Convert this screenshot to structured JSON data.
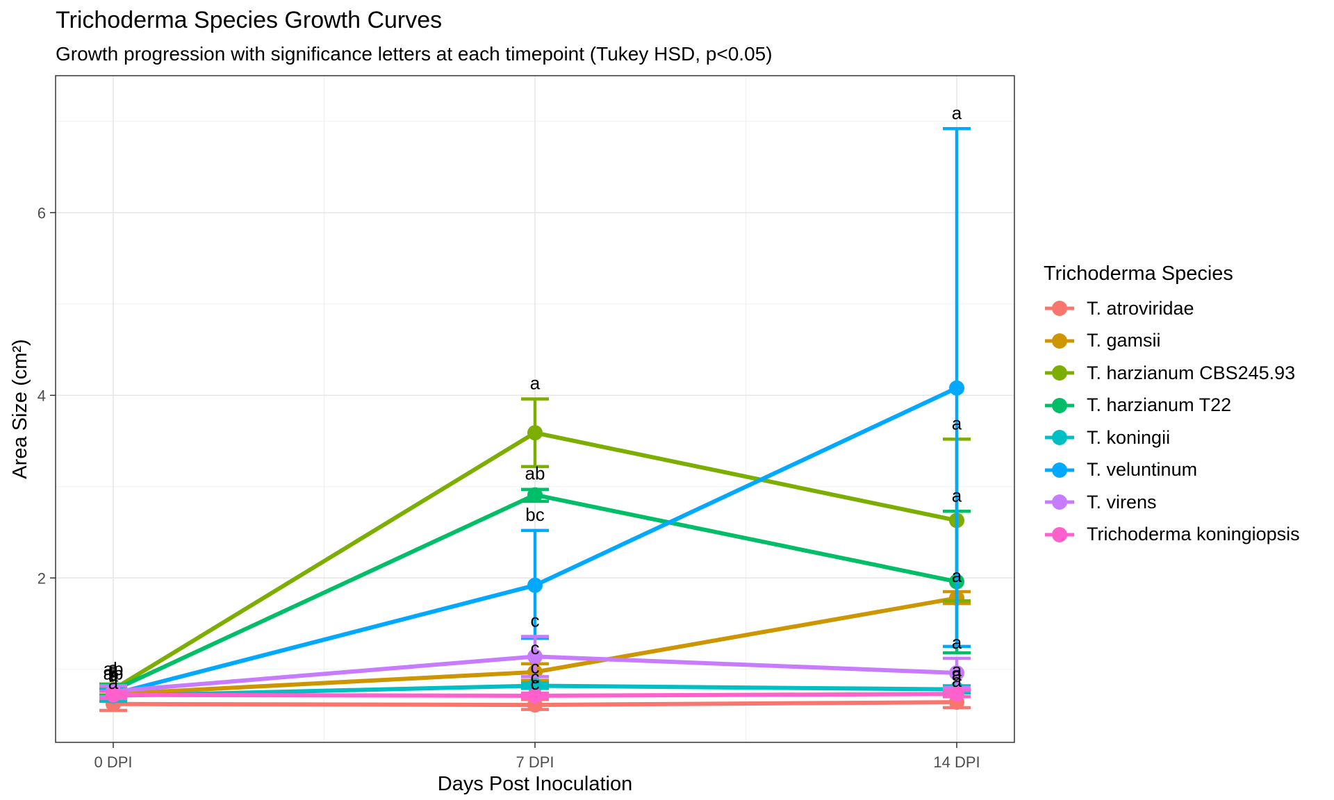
{
  "chart_data": {
    "type": "line",
    "title": "Trichoderma Species Growth Curves",
    "subtitle": "Growth progression with significance letters at each timepoint (Tukey HSD, p<0.05)",
    "xlabel": "Days Post Inoculation",
    "ylabel": "Area Size (cm²)",
    "categories": [
      "0 DPI",
      "7 DPI",
      "14 DPI"
    ],
    "ylim": [
      0.2,
      7.5
    ],
    "yticks": [
      2,
      4,
      6
    ],
    "grid": true,
    "legend_title": "Trichoderma Species",
    "legend_position": "right",
    "series": [
      {
        "name": "T. atroviridae",
        "color": "#F8766D",
        "values": [
          0.62,
          0.61,
          0.64
        ],
        "err_lo": [
          0.55,
          0.56,
          0.58
        ],
        "err_hi": [
          0.68,
          0.67,
          0.7
        ],
        "letters": [
          "a",
          "c",
          "a"
        ]
      },
      {
        "name": "T. gamsii",
        "color": "#CD9600",
        "values": [
          0.73,
          0.97,
          1.78
        ],
        "err_lo": [
          0.65,
          0.88,
          1.72
        ],
        "err_hi": [
          0.8,
          1.06,
          1.85
        ],
        "letters": [
          "a",
          "c",
          "a"
        ]
      },
      {
        "name": "T. harzianum CBS245.93",
        "color": "#7CAE00",
        "values": [
          0.78,
          3.59,
          2.63
        ],
        "err_lo": [
          0.72,
          3.22,
          1.75
        ],
        "err_hi": [
          0.84,
          3.96,
          3.52
        ],
        "letters": [
          "a",
          "a",
          "a"
        ]
      },
      {
        "name": "T. harzianum T22",
        "color": "#00BE67",
        "values": [
          0.77,
          2.91,
          1.96
        ],
        "err_lo": [
          0.71,
          2.84,
          1.18
        ],
        "err_hi": [
          0.83,
          2.97,
          2.73
        ],
        "letters": [
          "ab",
          "ab",
          "a"
        ]
      },
      {
        "name": "T. koningii",
        "color": "#00BFC4",
        "values": [
          0.71,
          0.82,
          0.78
        ],
        "err_lo": [
          0.65,
          0.79,
          0.74
        ],
        "err_hi": [
          0.77,
          0.85,
          0.82
        ],
        "letters": [
          "b",
          "c",
          "a"
        ]
      },
      {
        "name": "T. veluntinum",
        "color": "#00A9FF",
        "values": [
          0.73,
          1.92,
          4.08
        ],
        "err_lo": [
          0.68,
          1.34,
          1.25
        ],
        "err_hi": [
          0.78,
          2.52,
          6.92
        ],
        "letters": [
          "ab",
          "bc",
          "a"
        ]
      },
      {
        "name": "T. virens",
        "color": "#C77CFF",
        "values": [
          0.76,
          1.14,
          0.96
        ],
        "err_lo": [
          0.7,
          0.92,
          0.8
        ],
        "err_hi": [
          0.82,
          1.36,
          1.12
        ],
        "letters": [
          "a",
          "c",
          "a"
        ]
      },
      {
        "name": "Trichoderma koningiopsis",
        "color": "#FF61CC",
        "values": [
          0.72,
          0.71,
          0.73
        ],
        "err_lo": [
          0.68,
          0.68,
          0.7
        ],
        "err_hi": [
          0.76,
          0.74,
          0.77
        ],
        "letters": [
          "a",
          "c",
          "a"
        ]
      }
    ]
  }
}
